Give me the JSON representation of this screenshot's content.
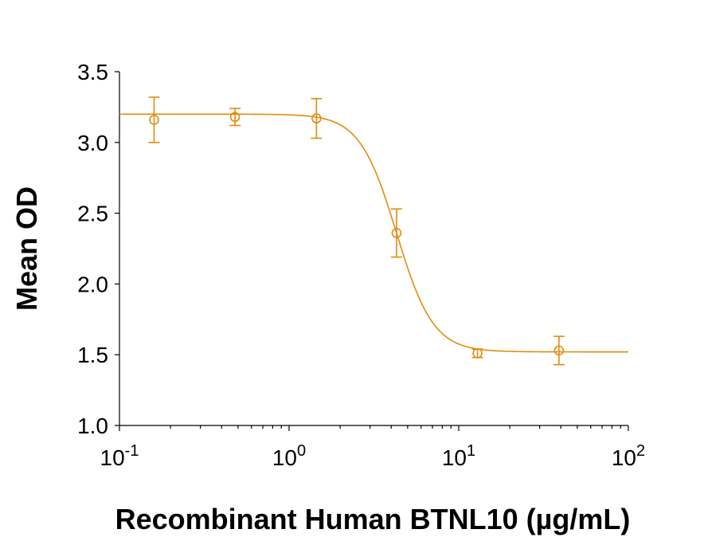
{
  "chart_data": {
    "type": "scatter",
    "xlabel": "Recombinant Human BTNL10 (µg/mL)",
    "ylabel": "Mean OD",
    "x_scale": "log",
    "xlim": [
      0.1,
      100
    ],
    "ylim": [
      1.0,
      3.5
    ],
    "y_ticks": [
      "1.0",
      "1.5",
      "2.0",
      "2.5",
      "3.0",
      "3.5"
    ],
    "x_ticks": [
      {
        "base": "10",
        "exp": "-1"
      },
      {
        "base": "10",
        "exp": "0"
      },
      {
        "base": "10",
        "exp": "1"
      },
      {
        "base": "10",
        "exp": "2"
      }
    ],
    "color": "#E38B0D",
    "marker": "open-circle",
    "grid": false,
    "series": [
      {
        "points": [
          {
            "x": 0.16,
            "y": 3.16,
            "err": 0.16
          },
          {
            "x": 0.48,
            "y": 3.18,
            "err": 0.06
          },
          {
            "x": 1.45,
            "y": 3.17,
            "err": 0.14
          },
          {
            "x": 4.3,
            "y": 2.36,
            "err": 0.17
          },
          {
            "x": 12.9,
            "y": 1.51,
            "err": 0.03
          },
          {
            "x": 39.0,
            "y": 1.53,
            "err": 0.1
          }
        ],
        "fit": {
          "model": "4PL",
          "top": 3.2,
          "bottom": 1.52,
          "ec50": 4.3,
          "hill": 4.0,
          "x_range": [
            0.1,
            100
          ]
        }
      }
    ]
  }
}
